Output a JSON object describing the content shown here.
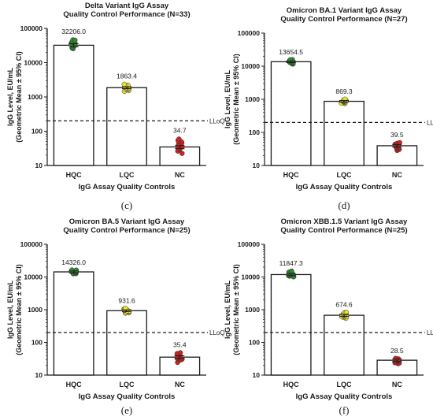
{
  "chart_data": [
    {
      "type": "bar",
      "panel": "(c)",
      "title_line1": "Delta Variant IgG Assay",
      "title_line2": "Quality Control Performance (N=33)",
      "ylabel_line1": "IgG Level, EU/mL",
      "ylabel_line2": "(Geometric Mean ± 95% CI)",
      "xlabel": "IgG Assay Quality Controls",
      "categories": [
        "HQC",
        "LQC",
        "NC"
      ],
      "values": [
        32206.0,
        1863.4,
        34.7
      ],
      "value_labels": [
        "32206.0",
        "1863.4",
        "34.7"
      ],
      "ci": [
        [
          29000,
          35500
        ],
        [
          1750,
          1990
        ],
        [
          31,
          38
        ]
      ],
      "points_range": [
        [
          24000,
          50000
        ],
        [
          1400,
          2500
        ],
        [
          22,
          65
        ]
      ],
      "point_colors": [
        "#2e8b2e",
        "#e8e030",
        "#cc2222"
      ],
      "lloq": 200,
      "lloq_label": "LLoQ",
      "yscale": "log",
      "ylim": [
        10,
        100000
      ],
      "yticks": [
        10,
        100,
        1000,
        10000,
        100000
      ],
      "ytick_labels": [
        "10",
        "100",
        "1000",
        "10000",
        "100000"
      ]
    },
    {
      "type": "bar",
      "panel": "(d)",
      "title_line1": "Omicron BA.1 Variant IgG Assay",
      "title_line2": "Quality Control Performance (N=27)",
      "ylabel_line1": "IgG Level, EU/mL",
      "ylabel_line2": "(Geometric Mean ± 95% CI)",
      "xlabel": "IgG Assay Quality Controls",
      "categories": [
        "HQC",
        "LQC",
        "NC"
      ],
      "values": [
        13654.5,
        869.3,
        39.5
      ],
      "value_labels": [
        "13654.5",
        "869.3",
        "39.5"
      ],
      "ci": [
        [
          12800,
          14500
        ],
        [
          820,
          920
        ],
        [
          36,
          43
        ]
      ],
      "points_range": [
        [
          11000,
          16500
        ],
        [
          720,
          1050
        ],
        [
          28,
          52
        ]
      ],
      "point_colors": [
        "#2e8b2e",
        "#e8e030",
        "#cc2222"
      ],
      "lloq": 200,
      "lloq_label": "LLoQ",
      "yscale": "log",
      "ylim": [
        10,
        100000
      ],
      "yticks": [
        10,
        100,
        1000,
        10000,
        100000
      ],
      "ytick_labels": [
        "10",
        "100",
        "1000",
        "10000",
        "100000"
      ]
    },
    {
      "type": "bar",
      "panel": "(e)",
      "title_line1": "Omicron BA.5 Variant IgG Assay",
      "title_line2": "Quality Control Performance (N=25)",
      "ylabel_line1": "IgG Level, EU/mL",
      "ylabel_line2": "(Geometric Mean ± 95% CI)",
      "xlabel": "IgG Assay Quality Controls",
      "categories": [
        "HQC",
        "LQC",
        "NC"
      ],
      "values": [
        14326.0,
        931.6,
        35.4
      ],
      "value_labels": [
        "14326.0",
        "931.6",
        "35.4"
      ],
      "ci": [
        [
          13400,
          15300
        ],
        [
          880,
          985
        ],
        [
          32,
          39
        ]
      ],
      "points_range": [
        [
          12000,
          17000
        ],
        [
          760,
          1150
        ],
        [
          24,
          52
        ]
      ],
      "point_colors": [
        "#2e8b2e",
        "#e8e030",
        "#cc2222"
      ],
      "lloq": 200,
      "lloq_label": "LLoQ",
      "yscale": "log",
      "ylim": [
        10,
        100000
      ],
      "yticks": [
        10,
        100,
        1000,
        10000,
        100000
      ],
      "ytick_labels": [
        "10",
        "100",
        "1000",
        "10000",
        "100000"
      ]
    },
    {
      "type": "bar",
      "panel": "(f)",
      "title_line1": "Omicron XBB.1.5 Variant IgG Assay",
      "title_line2": "Quality Control Performance (N=25)",
      "ylabel_line1": "IgG Level, EU/mL",
      "ylabel_line2": "(Geometric Mean ± 95% CI)",
      "xlabel": "IgG Assay Quality Controls",
      "categories": [
        "HQC",
        "LQC",
        "NC"
      ],
      "values": [
        11847.3,
        674.6,
        28.5
      ],
      "value_labels": [
        "11847.3",
        "674.6",
        "28.5"
      ],
      "ci": [
        [
          11000,
          12800
        ],
        [
          620,
          730
        ],
        [
          26,
          31
        ]
      ],
      "points_range": [
        [
          9500,
          16000
        ],
        [
          520,
          880
        ],
        [
          22,
          34
        ]
      ],
      "point_colors": [
        "#2e8b2e",
        "#e8e030",
        "#cc2222"
      ],
      "lloq": 200,
      "lloq_label": "LLoQ",
      "yscale": "log",
      "ylim": [
        10,
        100000
      ],
      "yticks": [
        10,
        100,
        1000,
        10000,
        100000
      ],
      "ytick_labels": [
        "10",
        "100",
        "1000",
        "10000",
        "100000"
      ]
    }
  ]
}
